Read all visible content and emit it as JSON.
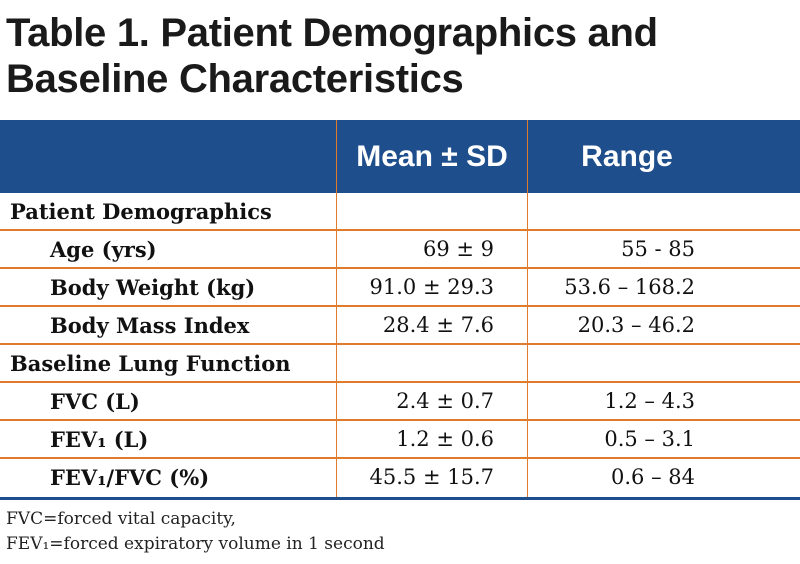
{
  "title": {
    "line1": "Table 1. Patient Demographics and",
    "line2": "Baseline Characteristics"
  },
  "columns": {
    "mean": "Mean ± SD",
    "range": "Range"
  },
  "sections": [
    {
      "label": "Patient Demographics",
      "rows": [
        {
          "label": "Age (yrs)",
          "mean": "69 ± 9",
          "range": "55 - 85"
        },
        {
          "label": "Body Weight (kg)",
          "mean": "91.0 ± 29.3",
          "range": "53.6 – 168.2"
        },
        {
          "label": "Body Mass Index",
          "mean": "28.4 ± 7.6",
          "range": "20.3 – 46.2"
        }
      ]
    },
    {
      "label": "Baseline Lung Function",
      "rows": [
        {
          "label": "FVC (L)",
          "mean": "2.4 ± 0.7",
          "range": "1.2 – 4.3"
        },
        {
          "label": "FEV₁ (L)",
          "mean": "1.2 ± 0.6",
          "range": "0.5 – 3.1"
        },
        {
          "label": "FEV₁/FVC (%)",
          "mean": "45.5 ± 15.7",
          "range": "0.6 – 84"
        }
      ]
    }
  ],
  "footnote": {
    "line1": "FVC=forced vital capacity,",
    "line2": "FEV₁=forced expiratory volume in 1 second"
  },
  "colors": {
    "header": "#1f4e8c",
    "rule": "#e07b2e"
  }
}
